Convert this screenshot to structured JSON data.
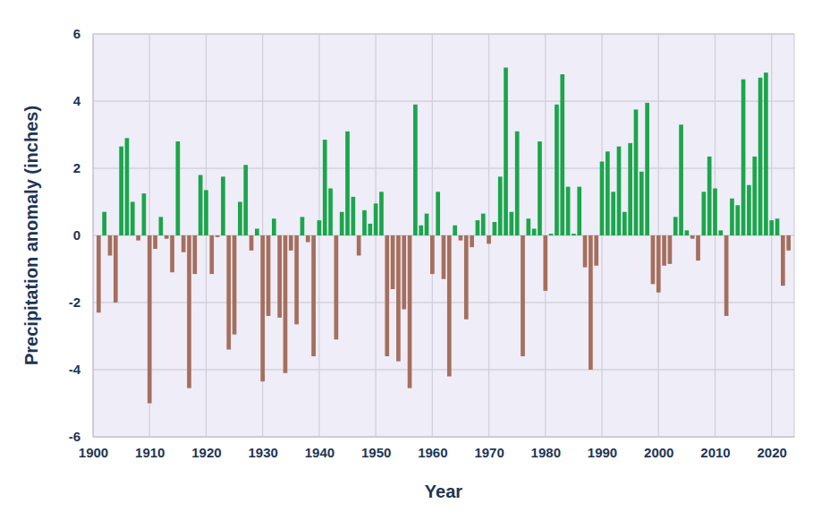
{
  "chart_data": {
    "type": "bar",
    "x_label": "Year",
    "y_label": "Precipitation anomaly (inches)",
    "x": [
      1901,
      1902,
      1903,
      1904,
      1905,
      1906,
      1907,
      1908,
      1909,
      1910,
      1911,
      1912,
      1913,
      1914,
      1915,
      1916,
      1917,
      1918,
      1919,
      1920,
      1921,
      1922,
      1923,
      1924,
      1925,
      1926,
      1927,
      1928,
      1929,
      1930,
      1931,
      1932,
      1933,
      1934,
      1935,
      1936,
      1937,
      1938,
      1939,
      1940,
      1941,
      1942,
      1943,
      1944,
      1945,
      1946,
      1947,
      1948,
      1949,
      1950,
      1951,
      1952,
      1953,
      1954,
      1955,
      1956,
      1957,
      1958,
      1959,
      1960,
      1961,
      1962,
      1963,
      1964,
      1965,
      1966,
      1967,
      1968,
      1969,
      1970,
      1971,
      1972,
      1973,
      1974,
      1975,
      1976,
      1977,
      1978,
      1979,
      1980,
      1981,
      1982,
      1983,
      1984,
      1985,
      1986,
      1987,
      1988,
      1989,
      1990,
      1991,
      1992,
      1993,
      1994,
      1995,
      1996,
      1997,
      1998,
      1999,
      2000,
      2001,
      2002,
      2003,
      2004,
      2005,
      2006,
      2007,
      2008,
      2009,
      2010,
      2011,
      2012,
      2013,
      2014,
      2015,
      2016,
      2017,
      2018,
      2019,
      2020,
      2021,
      2022,
      2023
    ],
    "values": [
      -2.3,
      0.7,
      -0.6,
      -2.0,
      2.65,
      2.9,
      1.0,
      -0.15,
      1.25,
      -5.0,
      -0.4,
      0.55,
      -0.1,
      -1.1,
      2.8,
      -0.5,
      -4.55,
      -1.15,
      1.8,
      1.35,
      -1.15,
      -0.05,
      1.75,
      -3.4,
      -2.95,
      1.0,
      2.1,
      -0.45,
      0.2,
      -4.35,
      -2.4,
      0.5,
      -2.45,
      -4.1,
      -0.45,
      -2.65,
      0.55,
      -0.2,
      -3.6,
      0.45,
      2.85,
      1.4,
      -3.1,
      0.7,
      3.1,
      1.15,
      -0.6,
      0.75,
      0.35,
      0.95,
      1.3,
      -3.6,
      -1.6,
      -3.75,
      -2.2,
      -4.55,
      3.9,
      0.3,
      0.65,
      -1.15,
      1.3,
      -1.3,
      -4.2,
      0.3,
      -0.15,
      -2.5,
      -0.35,
      0.45,
      0.65,
      -0.25,
      0.4,
      1.75,
      5.0,
      0.7,
      3.1,
      -3.6,
      0.5,
      0.2,
      2.8,
      -1.65,
      0.05,
      3.9,
      4.8,
      1.45,
      0.05,
      1.45,
      -0.95,
      -4.0,
      -0.9,
      2.2,
      2.5,
      1.3,
      2.65,
      0.7,
      2.75,
      3.75,
      1.9,
      3.95,
      -1.45,
      -1.7,
      -0.9,
      -0.85,
      0.55,
      3.3,
      0.15,
      -0.1,
      -0.75,
      1.3,
      2.35,
      1.4,
      0.15,
      -2.4,
      1.1,
      0.9,
      4.65,
      1.5,
      2.35,
      4.7,
      4.85,
      0.45,
      0.5,
      -1.5,
      -0.45
    ],
    "colors": [
      "#a56f5d",
      "#1aa64b",
      "#a56f5d",
      "#a56f5d",
      "#1aa64b",
      "#1aa64b",
      "#1aa64b",
      "#a56f5d",
      "#1aa64b",
      "#a56f5d",
      "#a56f5d",
      "#1aa64b",
      "#a56f5d",
      "#a56f5d",
      "#1aa64b",
      "#a56f5d",
      "#a56f5d",
      "#a56f5d",
      "#1aa64b",
      "#1aa64b",
      "#a56f5d",
      "#a56f5d",
      "#1aa64b",
      "#a56f5d",
      "#a56f5d",
      "#1aa64b",
      "#1aa64b",
      "#a56f5d",
      "#1aa64b",
      "#a56f5d",
      "#a56f5d",
      "#1aa64b",
      "#a56f5d",
      "#a56f5d",
      "#a56f5d",
      "#a56f5d",
      "#1aa64b",
      "#a56f5d",
      "#a56f5d",
      "#1aa64b",
      "#1aa64b",
      "#1aa64b",
      "#a56f5d",
      "#1aa64b",
      "#1aa64b",
      "#1aa64b",
      "#a56f5d",
      "#1aa64b",
      "#1aa64b",
      "#1aa64b",
      "#1aa64b",
      "#a56f5d",
      "#a56f5d",
      "#a56f5d",
      "#a56f5d",
      "#a56f5d",
      "#1aa64b",
      "#1aa64b",
      "#1aa64b",
      "#a56f5d",
      "#1aa64b",
      "#a56f5d",
      "#a56f5d",
      "#1aa64b",
      "#a56f5d",
      "#a56f5d",
      "#a56f5d",
      "#1aa64b",
      "#1aa64b",
      "#a56f5d",
      "#1aa64b",
      "#1aa64b",
      "#1aa64b",
      "#1aa64b",
      "#1aa64b",
      "#a56f5d",
      "#1aa64b",
      "#1aa64b",
      "#1aa64b",
      "#a56f5d",
      "#1aa64b",
      "#1aa64b",
      "#1aa64b",
      "#1aa64b",
      "#1aa64b",
      "#1aa64b",
      "#a56f5d",
      "#a56f5d",
      "#a56f5d",
      "#1aa64b",
      "#1aa64b",
      "#1aa64b",
      "#1aa64b",
      "#1aa64b",
      "#1aa64b",
      "#1aa64b",
      "#1aa64b",
      "#1aa64b",
      "#a56f5d",
      "#a56f5d",
      "#a56f5d",
      "#a56f5d",
      "#1aa64b",
      "#1aa64b",
      "#1aa64b",
      "#a56f5d",
      "#a56f5d",
      "#1aa64b",
      "#1aa64b",
      "#1aa64b",
      "#1aa64b",
      "#a56f5d",
      "#1aa64b",
      "#1aa64b",
      "#1aa64b",
      "#1aa64b",
      "#1aa64b",
      "#1aa64b",
      "#1aa64b",
      "#1aa64b",
      "#1aa64b",
      "#a56f5d",
      "#a56f5d"
    ],
    "xlim": [
      1900,
      2024
    ],
    "xticks": [
      1900,
      1910,
      1920,
      1930,
      1940,
      1950,
      1960,
      1970,
      1980,
      1990,
      2000,
      2010,
      2020
    ],
    "ylim": [
      -6,
      6
    ],
    "yticks": [
      -6,
      -4,
      -2,
      0,
      2,
      4,
      6
    ],
    "grid": true
  }
}
